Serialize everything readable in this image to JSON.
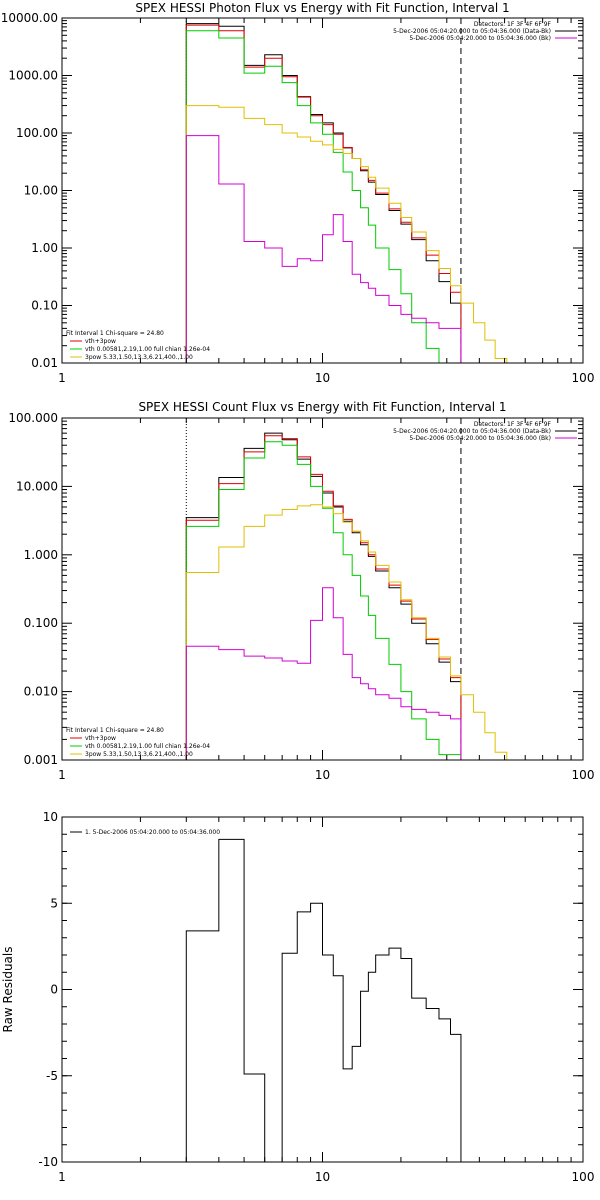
{
  "chart_data": [
    {
      "id": "photon",
      "type": "line",
      "step": true,
      "title": "SPEX HESSI Photon Flux vs Energy with Fit Function, Interval 1",
      "xlabel": "",
      "ylabel": "",
      "xscale": "log",
      "yscale": "log",
      "xlim": [
        1,
        100
      ],
      "ylim": [
        0.01,
        10000
      ],
      "xtick_values": [
        1,
        10,
        100
      ],
      "xtick_labels": [
        "1",
        "10",
        "100"
      ],
      "ytick_values": [
        0.01,
        0.1,
        1,
        10,
        100,
        1000,
        10000
      ],
      "ytick_labels": [
        "0.01",
        "0.10",
        "1.00",
        "10.00",
        "100.00",
        "1000.00",
        "10000.00"
      ],
      "vlines": [
        {
          "x": 3.0,
          "style": "dotted",
          "color": "#000000"
        },
        {
          "x": 34.0,
          "style": "dashed",
          "color": "#000000"
        }
      ],
      "header_text": [
        "Detectors: 1F 3F 4F 6F 9F",
        "5-Dec-2006 05:04:20.000 to 05:04:36.000 (Data-Bk)",
        "5-Dec-2006 05:04:20.000 to 05:04:36.000 (Bk)"
      ],
      "header_colors": [
        "",
        "#000000",
        "#d400d4"
      ],
      "legend_header": "Fit Interval  1    Chi-square = 24.80",
      "legend": [
        {
          "label": "vth+3pow",
          "color": "#e00000"
        },
        {
          "label": "vth 0.00581,2.19,1.00   full chian 1.26e-04",
          "color": "#00cc00"
        },
        {
          "label": "3pow 5.33,1.50,13.3,6.21,400.,1.00",
          "color": "#e0c000"
        }
      ],
      "series": [
        {
          "name": "Data-Bk",
          "color": "#000000",
          "edges": [
            3,
            4,
            5,
            6,
            7,
            8,
            9,
            10,
            11,
            12,
            13,
            14,
            15,
            16,
            18,
            20,
            22,
            25,
            28,
            31,
            34
          ],
          "values": [
            8000,
            7200,
            1500,
            2300,
            1000,
            430,
            210,
            150,
            100,
            55,
            36,
            22,
            14,
            8.5,
            4.5,
            2.6,
            1.4,
            0.6,
            0.26,
            0.11
          ]
        },
        {
          "name": "vth+3pow",
          "color": "#e00000",
          "edges": [
            3,
            4,
            5,
            6,
            7,
            8,
            9,
            10,
            11,
            12,
            13,
            14,
            15,
            16,
            18,
            20,
            22,
            25,
            28,
            31,
            34
          ],
          "values": [
            7500,
            6000,
            1400,
            2000,
            950,
            420,
            200,
            140,
            95,
            56,
            36,
            23,
            15,
            9,
            4.8,
            2.8,
            1.5,
            0.75,
            0.36,
            0.17
          ]
        },
        {
          "name": "vth",
          "color": "#00cc00",
          "edges": [
            3,
            4,
            5,
            6,
            7,
            8,
            9,
            10,
            11,
            12,
            13,
            14,
            15,
            16,
            18,
            20,
            22,
            25,
            28,
            31,
            34
          ],
          "values": [
            6000,
            4500,
            1100,
            1450,
            750,
            300,
            150,
            95,
            46,
            21,
            10,
            5,
            2.5,
            1.0,
            0.42,
            0.16,
            0.05,
            0.018,
            0.008,
            0.004
          ]
        },
        {
          "name": "3pow",
          "color": "#e0c000",
          "edges": [
            3,
            4,
            5,
            6,
            7,
            8,
            9,
            10,
            11,
            12,
            13,
            14,
            15,
            16,
            18,
            20,
            22,
            25,
            28,
            31,
            34,
            38,
            42,
            46,
            51
          ],
          "values": [
            300,
            280,
            180,
            140,
            100,
            85,
            72,
            62,
            52,
            44,
            36,
            26,
            17,
            11,
            6.0,
            3.4,
            1.9,
            0.9,
            0.44,
            0.22,
            0.11,
            0.05,
            0.025,
            0.012
          ]
        },
        {
          "name": "Bk",
          "color": "#d400d4",
          "edges": [
            3,
            4,
            5,
            6,
            7,
            8,
            9,
            10,
            11,
            12,
            13,
            14,
            15,
            16,
            18,
            20,
            22,
            25,
            28,
            31,
            34
          ],
          "values": [
            90,
            13,
            1.3,
            1.0,
            0.48,
            0.65,
            0.6,
            1.7,
            3.8,
            1.3,
            0.35,
            0.25,
            0.2,
            0.15,
            0.1,
            0.07,
            0.06,
            0.05,
            0.04,
            0.04
          ]
        }
      ]
    },
    {
      "id": "count",
      "type": "line",
      "step": true,
      "title": "SPEX HESSI Count Flux vs Energy with Fit Function, Interval 1",
      "xlabel": "",
      "ylabel": "",
      "xscale": "log",
      "yscale": "log",
      "xlim": [
        1,
        100
      ],
      "ylim": [
        0.001,
        100
      ],
      "xtick_values": [
        1,
        10,
        100
      ],
      "xtick_labels": [
        "1",
        "10",
        "100"
      ],
      "ytick_values": [
        0.001,
        0.01,
        0.1,
        1,
        10,
        100
      ],
      "ytick_labels": [
        "0.001",
        "0.010",
        "0.100",
        "1.000",
        "10.000",
        "100.000"
      ],
      "vlines": [
        {
          "x": 3.0,
          "style": "dotted",
          "color": "#000000"
        },
        {
          "x": 34.0,
          "style": "dashed",
          "color": "#000000"
        }
      ],
      "header_text": [
        "Detectors: 1F 3F 4F 6F 9F",
        "5-Dec-2006 05:04:20.000 to 05:04:36.000 (Data-Bk)",
        "5-Dec-2006 05:04:20.000 to 05:04:36.000 (Bk)"
      ],
      "header_colors": [
        "",
        "#000000",
        "#d400d4"
      ],
      "legend_header": "Fit Interval  1    Chi-square = 24.80",
      "legend": [
        {
          "label": "vth+3pow",
          "color": "#e00000"
        },
        {
          "label": "vth 0.00581,2.19,1.00   full chian 1.26e-04",
          "color": "#00cc00"
        },
        {
          "label": "3pow 5.33,1.50,13.3,6.21,400.,1.00",
          "color": "#e0c000"
        }
      ],
      "series": [
        {
          "name": "Data-Bk",
          "color": "#000000",
          "edges": [
            3,
            4,
            5,
            6,
            7,
            8,
            9,
            10,
            11,
            12,
            13,
            14,
            15,
            16,
            18,
            20,
            22,
            25,
            28,
            31,
            34
          ],
          "values": [
            3.5,
            13.5,
            36,
            60,
            48,
            25,
            14,
            8.0,
            5.0,
            3.1,
            2.1,
            1.4,
            0.95,
            0.58,
            0.33,
            0.19,
            0.1,
            0.05,
            0.027,
            0.014
          ]
        },
        {
          "name": "vth+3pow",
          "color": "#e00000",
          "edges": [
            3,
            4,
            5,
            6,
            7,
            8,
            9,
            10,
            11,
            12,
            13,
            14,
            15,
            16,
            18,
            20,
            22,
            25,
            28,
            31,
            34
          ],
          "values": [
            3.2,
            11,
            32,
            55,
            50,
            27,
            15,
            8.5,
            5.2,
            3.3,
            2.2,
            1.5,
            1.0,
            0.62,
            0.36,
            0.21,
            0.115,
            0.058,
            0.03,
            0.016
          ]
        },
        {
          "name": "vth",
          "color": "#00cc00",
          "edges": [
            3,
            4,
            5,
            6,
            7,
            8,
            9,
            10,
            11,
            12,
            13,
            14,
            15,
            16,
            18,
            20,
            22,
            25,
            28,
            31,
            34
          ],
          "values": [
            2.6,
            9.0,
            26,
            45,
            40,
            21,
            10,
            4.8,
            2.1,
            1.0,
            0.5,
            0.25,
            0.13,
            0.06,
            0.025,
            0.01,
            0.004,
            0.002,
            0.0012,
            0.0012
          ]
        },
        {
          "name": "3pow",
          "color": "#e0c000",
          "edges": [
            3,
            4,
            5,
            6,
            7,
            8,
            9,
            10,
            11,
            12,
            13,
            14,
            15,
            16,
            18,
            20,
            22,
            25,
            28,
            31,
            34,
            38,
            42,
            46,
            51,
            56
          ],
          "values": [
            0.55,
            1.3,
            2.6,
            3.8,
            4.6,
            5.2,
            5.4,
            5.0,
            4.0,
            3.0,
            2.2,
            1.6,
            1.1,
            0.7,
            0.4,
            0.22,
            0.12,
            0.06,
            0.032,
            0.017,
            0.009,
            0.005,
            0.0025,
            0.0013,
            0.0009
          ]
        },
        {
          "name": "Bk",
          "color": "#d400d4",
          "edges": [
            3,
            4,
            5,
            6,
            7,
            8,
            9,
            10,
            11,
            12,
            13,
            14,
            15,
            16,
            18,
            20,
            22,
            25,
            28,
            31,
            34
          ],
          "values": [
            0.046,
            0.041,
            0.033,
            0.031,
            0.028,
            0.026,
            0.11,
            0.33,
            0.12,
            0.035,
            0.016,
            0.013,
            0.011,
            0.009,
            0.008,
            0.006,
            0.0055,
            0.005,
            0.0045,
            0.004
          ]
        }
      ]
    },
    {
      "id": "residuals",
      "type": "line",
      "step": true,
      "title": "",
      "xlabel": "",
      "ylabel": "Raw Residuals",
      "xscale": "log",
      "yscale": "linear",
      "xlim": [
        1,
        100
      ],
      "ylim": [
        -10,
        10
      ],
      "xtick_values": [
        1,
        10,
        100
      ],
      "xtick_labels": [
        "1",
        "10",
        "100"
      ],
      "ytick_values": [
        -10,
        -5,
        0,
        5,
        10
      ],
      "ytick_labels": [
        "-10",
        "-5",
        "0",
        "5",
        "10"
      ],
      "header_text": [],
      "header_colors": [],
      "legend_header": "",
      "legend": [
        {
          "label": "1. 5-Dec-2006 05:04:20.000 to 05:04:36.000",
          "color": "#000000"
        }
      ],
      "series": [
        {
          "name": "1. 5-Dec-2006 05:04:20.000 to 05:04:36.000",
          "color": "#000000",
          "edges": [
            3,
            4,
            5,
            6,
            7,
            8,
            9,
            10,
            11,
            12,
            13,
            14,
            15,
            16,
            18,
            20,
            22,
            25,
            28,
            31,
            34
          ],
          "values": [
            3.4,
            8.7,
            -4.9,
            -10.2,
            2.1,
            4.5,
            5.0,
            2.0,
            0.8,
            -4.6,
            -3.3,
            -0.1,
            1.0,
            2.0,
            2.4,
            1.8,
            -0.5,
            -1.1,
            -1.7,
            -2.6
          ]
        }
      ]
    }
  ]
}
